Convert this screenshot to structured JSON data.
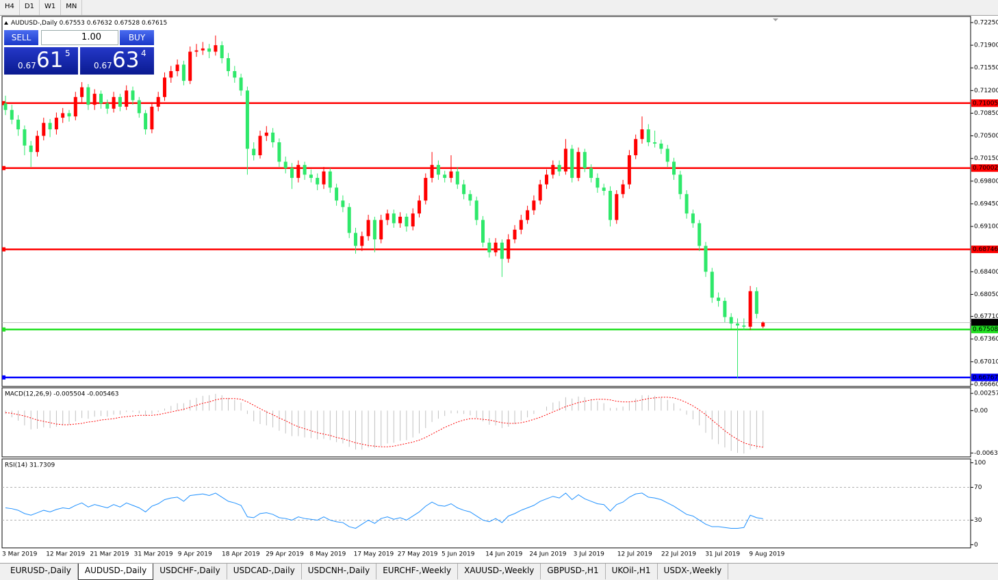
{
  "toolbar": [
    "H4",
    "D1",
    "W1",
    "MN"
  ],
  "trade_panel": {
    "sell": "SELL",
    "buy": "BUY",
    "lot": "1.00",
    "sell_price": [
      "0.67",
      "61",
      "5"
    ],
    "buy_price": [
      "0.67",
      "63",
      "4"
    ]
  },
  "chart_data": [
    {
      "type": "candlestick",
      "title": "AUDUSD-,Daily",
      "ohlc_now": [
        0.67553,
        0.67632,
        0.67528,
        0.67615
      ],
      "up_color": "#ff0000",
      "down_color": "#2ee86a",
      "ylim": [
        0.66628,
        0.72345
      ],
      "yticks": [
        {
          "value": 0.7225,
          "label": "0.72250"
        },
        {
          "value": 0.719,
          "label": "0.71900"
        },
        {
          "value": 0.7155,
          "label": "0.71550"
        },
        {
          "value": 0.712,
          "label": "0.71200"
        },
        {
          "value": 0.7085,
          "label": "0.70850"
        },
        {
          "value": 0.705,
          "label": "0.70500"
        },
        {
          "value": 0.7015,
          "label": "0.70150"
        },
        {
          "value": 0.698,
          "label": "0.69800"
        },
        {
          "value": 0.6945,
          "label": "0.69450"
        },
        {
          "value": 0.691,
          "label": "0.69100"
        },
        {
          "value": 0.684,
          "label": "0.68400"
        },
        {
          "value": 0.6805,
          "label": "0.68050"
        },
        {
          "value": 0.6771,
          "label": "0.67710"
        },
        {
          "value": 0.6736,
          "label": "0.67360"
        },
        {
          "value": 0.6701,
          "label": "0.67010"
        },
        {
          "value": 0.6666,
          "label": "0.66660"
        }
      ],
      "levels": [
        {
          "value": 0.71005,
          "color": "#ff0000"
        },
        {
          "value": 0.70002,
          "color": "#ff0000"
        },
        {
          "value": 0.68746,
          "color": "#ff0000"
        },
        {
          "value": 0.67508,
          "color": "#22e022"
        },
        {
          "value": 0.66767,
          "color": "#0000ff"
        }
      ],
      "current": {
        "value": 0.67615,
        "color": "#000000"
      },
      "ohlc": [
        [
          0.71,
          0.7112,
          0.7082,
          0.709
        ],
        [
          0.709,
          0.7098,
          0.7068,
          0.7075
        ],
        [
          0.7075,
          0.7082,
          0.705,
          0.706
        ],
        [
          0.706,
          0.7066,
          0.702,
          0.7035
        ],
        [
          0.7035,
          0.7042,
          0.7002,
          0.7025
        ],
        [
          0.7025,
          0.7058,
          0.7018,
          0.705
        ],
        [
          0.705,
          0.7078,
          0.7043,
          0.707
        ],
        [
          0.707,
          0.7076,
          0.7048,
          0.706
        ],
        [
          0.706,
          0.7086,
          0.7052,
          0.7078
        ],
        [
          0.7078,
          0.7093,
          0.707,
          0.7085
        ],
        [
          0.7085,
          0.709,
          0.7072,
          0.708
        ],
        [
          0.708,
          0.7118,
          0.7074,
          0.711
        ],
        [
          0.711,
          0.7133,
          0.7102,
          0.7125
        ],
        [
          0.7125,
          0.713,
          0.709,
          0.7098
        ],
        [
          0.7098,
          0.7122,
          0.709,
          0.7115
        ],
        [
          0.7115,
          0.712,
          0.7092,
          0.71
        ],
        [
          0.71,
          0.7106,
          0.7084,
          0.7092
        ],
        [
          0.7092,
          0.7118,
          0.7086,
          0.711
        ],
        [
          0.711,
          0.7115,
          0.7088,
          0.7095
        ],
        [
          0.7095,
          0.7128,
          0.709,
          0.712
        ],
        [
          0.712,
          0.7126,
          0.7098,
          0.7105
        ],
        [
          0.7105,
          0.711,
          0.7078,
          0.7085
        ],
        [
          0.7085,
          0.709,
          0.7052,
          0.706
        ],
        [
          0.706,
          0.7102,
          0.7054,
          0.7095
        ],
        [
          0.7095,
          0.7118,
          0.7088,
          0.711
        ],
        [
          0.711,
          0.7148,
          0.7104,
          0.714
        ],
        [
          0.714,
          0.7158,
          0.7132,
          0.715
        ],
        [
          0.715,
          0.7168,
          0.7142,
          0.716
        ],
        [
          0.716,
          0.7166,
          0.7128,
          0.7135
        ],
        [
          0.7135,
          0.7188,
          0.713,
          0.718
        ],
        [
          0.718,
          0.7192,
          0.7172,
          0.7182
        ],
        [
          0.7182,
          0.7195,
          0.7175,
          0.7185
        ],
        [
          0.7185,
          0.7192,
          0.717,
          0.718
        ],
        [
          0.718,
          0.7205,
          0.7174,
          0.719
        ],
        [
          0.719,
          0.7196,
          0.7162,
          0.717
        ],
        [
          0.717,
          0.7178,
          0.7142,
          0.715
        ],
        [
          0.715,
          0.7158,
          0.7132,
          0.714
        ],
        [
          0.714,
          0.7146,
          0.7112,
          0.712
        ],
        [
          0.712,
          0.7126,
          0.699,
          0.703
        ],
        [
          0.703,
          0.704,
          0.7012,
          0.702
        ],
        [
          0.702,
          0.7058,
          0.7015,
          0.705
        ],
        [
          0.705,
          0.7065,
          0.7042,
          0.7055
        ],
        [
          0.7055,
          0.7062,
          0.7032,
          0.704
        ],
        [
          0.704,
          0.7046,
          0.7002,
          0.701
        ],
        [
          0.701,
          0.7018,
          0.6992,
          0.7
        ],
        [
          0.7,
          0.7008,
          0.6968,
          0.6985
        ],
        [
          0.6985,
          0.7012,
          0.6978,
          0.7005
        ],
        [
          0.7005,
          0.701,
          0.6982,
          0.699
        ],
        [
          0.699,
          0.6998,
          0.6978,
          0.6985
        ],
        [
          0.6985,
          0.6992,
          0.6966,
          0.6975
        ],
        [
          0.6975,
          0.7002,
          0.6968,
          0.6995
        ],
        [
          0.6995,
          0.7,
          0.6962,
          0.697
        ],
        [
          0.697,
          0.6976,
          0.6942,
          0.695
        ],
        [
          0.695,
          0.6958,
          0.6932,
          0.694
        ],
        [
          0.694,
          0.6946,
          0.6892,
          0.69
        ],
        [
          0.69,
          0.6908,
          0.6868,
          0.688
        ],
        [
          0.688,
          0.6902,
          0.6872,
          0.6895
        ],
        [
          0.6895,
          0.6928,
          0.6888,
          0.692
        ],
        [
          0.692,
          0.6925,
          0.687,
          0.689
        ],
        [
          0.689,
          0.6928,
          0.6884,
          0.692
        ],
        [
          0.692,
          0.6936,
          0.6912,
          0.693
        ],
        [
          0.693,
          0.6936,
          0.6908,
          0.6915
        ],
        [
          0.6915,
          0.6932,
          0.6908,
          0.6925
        ],
        [
          0.6925,
          0.693,
          0.6902,
          0.691
        ],
        [
          0.691,
          0.6938,
          0.6904,
          0.693
        ],
        [
          0.693,
          0.6958,
          0.6924,
          0.695
        ],
        [
          0.695,
          0.6992,
          0.6944,
          0.6985
        ],
        [
          0.6985,
          0.7025,
          0.6978,
          0.7005
        ],
        [
          0.7005,
          0.7012,
          0.6982,
          0.699
        ],
        [
          0.699,
          0.6996,
          0.6978,
          0.6985
        ],
        [
          0.6985,
          0.702,
          0.6978,
          0.6995
        ],
        [
          0.6995,
          0.7002,
          0.6968,
          0.6975
        ],
        [
          0.6975,
          0.6982,
          0.6952,
          0.696
        ],
        [
          0.696,
          0.6966,
          0.6942,
          0.695
        ],
        [
          0.695,
          0.6956,
          0.6912,
          0.692
        ],
        [
          0.692,
          0.6926,
          0.6878,
          0.6885
        ],
        [
          0.6885,
          0.6892,
          0.6862,
          0.687
        ],
        [
          0.687,
          0.6892,
          0.6864,
          0.6885
        ],
        [
          0.6885,
          0.689,
          0.6832,
          0.686
        ],
        [
          0.686,
          0.6898,
          0.6854,
          0.689
        ],
        [
          0.689,
          0.6912,
          0.6884,
          0.6905
        ],
        [
          0.6905,
          0.6928,
          0.6898,
          0.692
        ],
        [
          0.692,
          0.6942,
          0.6914,
          0.6935
        ],
        [
          0.6935,
          0.6958,
          0.6928,
          0.695
        ],
        [
          0.695,
          0.6982,
          0.6944,
          0.6975
        ],
        [
          0.6975,
          0.6998,
          0.6968,
          0.699
        ],
        [
          0.699,
          0.7012,
          0.6984,
          0.7005
        ],
        [
          0.7005,
          0.7012,
          0.6988,
          0.6995
        ],
        [
          0.6995,
          0.7045,
          0.699,
          0.703
        ],
        [
          0.703,
          0.7036,
          0.6978,
          0.6985
        ],
        [
          0.6985,
          0.7032,
          0.698,
          0.7025
        ],
        [
          0.7025,
          0.703,
          0.6994,
          0.7
        ],
        [
          0.7,
          0.7006,
          0.6978,
          0.6985
        ],
        [
          0.6985,
          0.6992,
          0.6962,
          0.697
        ],
        [
          0.697,
          0.6976,
          0.6958,
          0.6965
        ],
        [
          0.6965,
          0.6972,
          0.691,
          0.692
        ],
        [
          0.692,
          0.6966,
          0.6914,
          0.696
        ],
        [
          0.696,
          0.6982,
          0.6954,
          0.6975
        ],
        [
          0.6975,
          0.7028,
          0.6968,
          0.702
        ],
        [
          0.702,
          0.7052,
          0.7014,
          0.7045
        ],
        [
          0.7045,
          0.708,
          0.7038,
          0.706
        ],
        [
          0.706,
          0.7068,
          0.7034,
          0.704
        ],
        [
          0.704,
          0.7058,
          0.7032,
          0.7038
        ],
        [
          0.7038,
          0.7044,
          0.7022,
          0.703
        ],
        [
          0.703,
          0.7036,
          0.7002,
          0.701
        ],
        [
          0.701,
          0.7016,
          0.6982,
          0.699
        ],
        [
          0.699,
          0.6996,
          0.6952,
          0.696
        ],
        [
          0.696,
          0.6966,
          0.6922,
          0.693
        ],
        [
          0.693,
          0.6936,
          0.6908,
          0.6915
        ],
        [
          0.6915,
          0.692,
          0.6872,
          0.688
        ],
        [
          0.688,
          0.6886,
          0.6832,
          0.684
        ],
        [
          0.684,
          0.6846,
          0.6792,
          0.68
        ],
        [
          0.68,
          0.6808,
          0.6786,
          0.6795
        ],
        [
          0.6795,
          0.68,
          0.6762,
          0.677
        ],
        [
          0.677,
          0.6776,
          0.6752,
          0.676
        ],
        [
          0.676,
          0.6768,
          0.6676,
          0.6757
        ],
        [
          0.6757,
          0.6768,
          0.675,
          0.6755
        ],
        [
          0.6755,
          0.6818,
          0.675,
          0.681
        ],
        [
          0.681,
          0.6816,
          0.6768,
          0.6775
        ],
        [
          0.67553,
          0.67632,
          0.67528,
          0.67615
        ]
      ]
    },
    {
      "type": "macd",
      "title": "MACD(12,26,9) -0.005504 -0.005463",
      "color": "#c0c0c0",
      "signal_color": "#ff0000",
      "ylim": [
        -0.0068,
        0.0032
      ],
      "yticks": [
        0.002574,
        {
          "value": 0,
          "label": "0.00"
        },
        -0.00632
      ],
      "values": [
        -0.0005,
        -0.001,
        -0.0015,
        -0.0022,
        -0.0028,
        -0.0027,
        -0.0025,
        -0.0026,
        -0.0024,
        -0.0022,
        -0.0021,
        -0.0016,
        -0.0011,
        -0.0012,
        -0.0009,
        -0.0008,
        -0.0009,
        -0.0006,
        -0.0006,
        -0.0002,
        -0.0002,
        -0.0004,
        -0.0008,
        -0.0005,
        -0.0002,
        0.0003,
        0.0007,
        0.0011,
        0.0011,
        0.0016,
        0.0019,
        0.0022,
        0.0023,
        0.0025,
        0.0023,
        0.0019,
        0.0016,
        0.0012,
        -0.0005,
        -0.0016,
        -0.002,
        -0.0022,
        -0.0025,
        -0.003,
        -0.0034,
        -0.0038,
        -0.0038,
        -0.004,
        -0.0041,
        -0.0043,
        -0.0042,
        -0.0044,
        -0.0047,
        -0.0049,
        -0.0054,
        -0.0058,
        -0.0058,
        -0.0055,
        -0.0056,
        -0.0053,
        -0.0049,
        -0.0048,
        -0.0045,
        -0.0044,
        -0.004,
        -0.0034,
        -0.0026,
        -0.0017,
        -0.0012,
        -0.0008,
        -0.0004,
        -0.0004,
        -0.0005,
        -0.0007,
        -0.0011,
        -0.0016,
        -0.0021,
        -0.0022,
        -0.0026,
        -0.0024,
        -0.002,
        -0.0015,
        -0.001,
        -0.0005,
        0.0,
        0.0006,
        0.0012,
        0.0014,
        0.002,
        0.0018,
        0.0021,
        0.002,
        0.0017,
        0.0014,
        0.0011,
        0.0004,
        0.0004,
        0.0006,
        0.0012,
        0.0018,
        0.0023,
        0.0023,
        0.0022,
        0.002,
        0.0016,
        0.0011,
        0.0003,
        -0.0006,
        -0.0013,
        -0.0022,
        -0.0033,
        -0.0043,
        -0.005,
        -0.0055,
        -0.006,
        -0.0063,
        -0.0064,
        -0.0058,
        -0.0057,
        -0.005504
      ],
      "signal": [
        -0.0003,
        -0.0004,
        -0.0006,
        -0.0008,
        -0.0011,
        -0.0014,
        -0.0016,
        -0.0018,
        -0.002,
        -0.0021,
        -0.0021,
        -0.002,
        -0.0019,
        -0.0017,
        -0.0016,
        -0.0014,
        -0.0013,
        -0.0012,
        -0.001,
        -0.0009,
        -0.0008,
        -0.0007,
        -0.0007,
        -0.0007,
        -0.0006,
        -0.0004,
        -0.0002,
        0.0,
        0.0002,
        0.0005,
        0.0008,
        0.0011,
        0.0013,
        0.0016,
        0.0018,
        0.0018,
        0.0018,
        0.0017,
        0.0013,
        0.0008,
        0.0003,
        -0.0002,
        -0.0006,
        -0.0011,
        -0.0015,
        -0.002,
        -0.0024,
        -0.0027,
        -0.003,
        -0.0033,
        -0.0035,
        -0.0037,
        -0.004,
        -0.0042,
        -0.0045,
        -0.0048,
        -0.005,
        -0.0052,
        -0.0053,
        -0.0054,
        -0.0054,
        -0.0053,
        -0.0051,
        -0.0049,
        -0.0047,
        -0.0044,
        -0.004,
        -0.0035,
        -0.003,
        -0.0025,
        -0.0021,
        -0.0017,
        -0.0014,
        -0.0012,
        -0.0012,
        -0.0013,
        -0.0014,
        -0.0016,
        -0.0018,
        -0.0019,
        -0.0019,
        -0.0018,
        -0.0016,
        -0.0013,
        -0.001,
        -0.0006,
        -0.0002,
        0.0002,
        0.0006,
        0.0009,
        0.0012,
        0.0014,
        0.0016,
        0.0017,
        0.0017,
        0.0016,
        0.0014,
        0.0013,
        0.0013,
        0.0014,
        0.0016,
        0.0018,
        0.0019,
        0.002,
        0.002,
        0.0019,
        0.0016,
        0.0012,
        0.0007,
        0.0001,
        -0.0006,
        -0.0014,
        -0.0022,
        -0.003,
        -0.0037,
        -0.0043,
        -0.0048,
        -0.0051,
        -0.0053,
        -0.005463
      ]
    },
    {
      "type": "line",
      "title": "RSI(14) 31.7309",
      "color": "#1e90ff",
      "ylim": [
        -3,
        103
      ],
      "yticks": [
        100,
        70,
        30,
        0
      ],
      "levels": [
        70,
        30
      ],
      "values": [
        45,
        44,
        42,
        38,
        36,
        39,
        42,
        40,
        43,
        45,
        44,
        48,
        51,
        46,
        49,
        47,
        45,
        49,
        46,
        51,
        48,
        45,
        40,
        47,
        50,
        55,
        57,
        58,
        53,
        60,
        61,
        62,
        60,
        63,
        58,
        53,
        51,
        48,
        34,
        33,
        38,
        39,
        37,
        33,
        32,
        30,
        34,
        32,
        31,
        30,
        34,
        30,
        28,
        27,
        22,
        20,
        25,
        30,
        26,
        32,
        34,
        31,
        33,
        30,
        35,
        40,
        47,
        52,
        48,
        47,
        50,
        45,
        42,
        40,
        35,
        30,
        28,
        32,
        27,
        35,
        38,
        42,
        45,
        48,
        53,
        56,
        59,
        57,
        63,
        55,
        61,
        56,
        53,
        50,
        49,
        41,
        49,
        52,
        58,
        62,
        63,
        58,
        57,
        55,
        51,
        47,
        42,
        37,
        35,
        30,
        25,
        22,
        22,
        21,
        20,
        20,
        21,
        36,
        33,
        31.7309
      ],
      "time_axis": [
        "3 Mar 2019",
        "12 Mar 2019",
        "21 Mar 2019",
        "31 Mar 2019",
        "9 Apr 2019",
        "18 Apr 2019",
        "29 Apr 2019",
        "8 May 2019",
        "17 May 2019",
        "27 May 2019",
        "5 Jun 2019",
        "14 Jun 2019",
        "24 Jun 2019",
        "3 Jul 2019",
        "12 Jul 2019",
        "22 Jul 2019",
        "31 Jul 2019",
        "9 Aug 2019"
      ]
    }
  ],
  "tabs": [
    "EURUSD-,Daily",
    "AUDUSD-,Daily",
    "USDCHF-,Daily",
    "USDCAD-,Daily",
    "USDCNH-,Daily",
    "EURCHF-,Weekly",
    "XAUUSD-,Weekly",
    "GBPUSD-,H1",
    "UKOil-,H1",
    "USDX-,Weekly"
  ]
}
